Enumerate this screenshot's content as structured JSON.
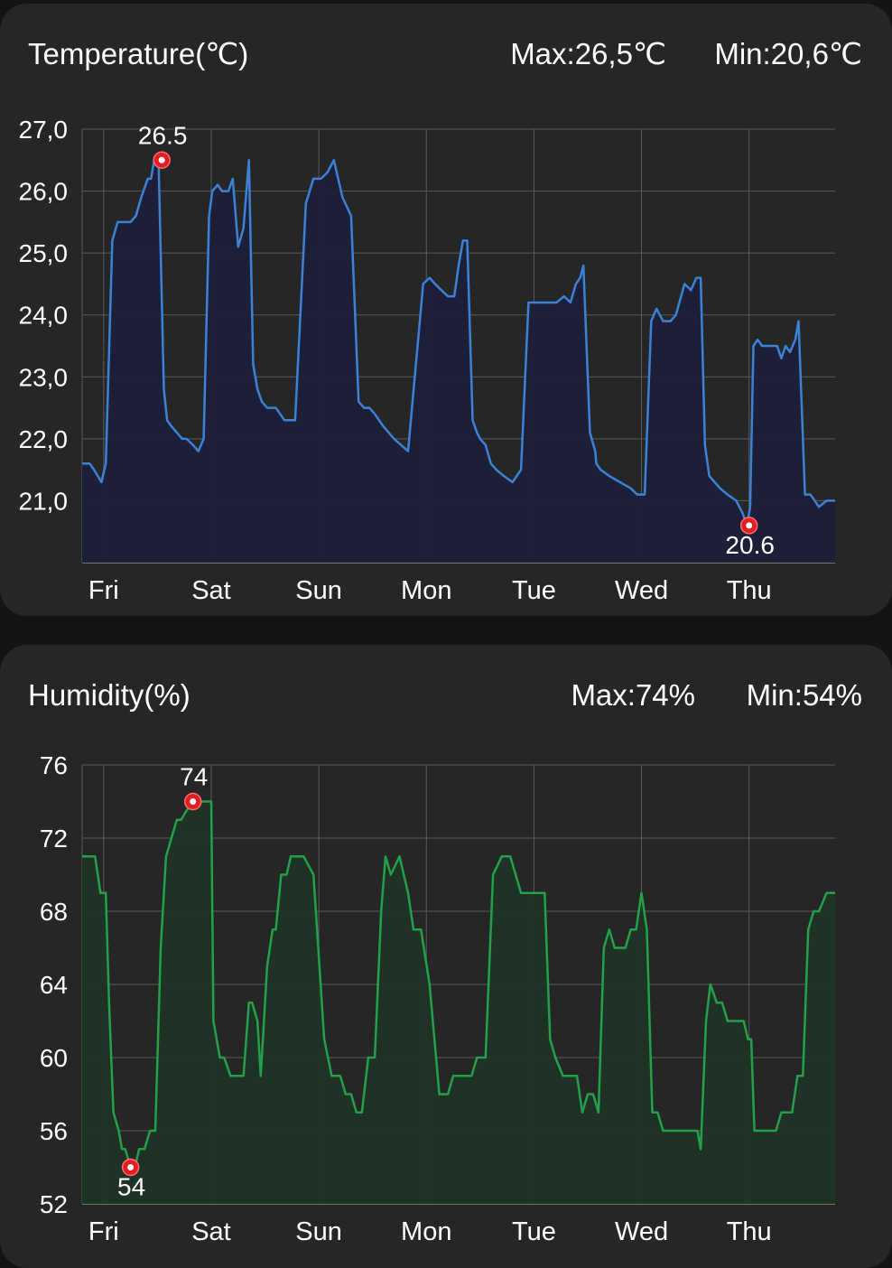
{
  "colors": {
    "temperature_line": "#3b82d6",
    "temperature_fill": "#1c1f3a",
    "humidity_line": "#22a04a",
    "humidity_fill": "#1e3426",
    "grid": "#5a5a5a",
    "marker": "#e11d24"
  },
  "temperature": {
    "title": "Temperature(℃)",
    "max_label": "Max:26,5℃",
    "min_label": "Min:20,6℃"
  },
  "humidity": {
    "title": "Humidity(%)",
    "max_label": "Max:74%",
    "min_label": "Min:54%"
  },
  "chart_data": [
    {
      "type": "area",
      "ylim": [
        20.0,
        27.0
      ],
      "yticks": [
        21.0,
        22.0,
        23.0,
        24.0,
        25.0,
        26.0,
        27.0
      ],
      "ytick_labels": [
        "21,0",
        "22,0",
        "23,0",
        "24,0",
        "25,0",
        "26,0",
        "27,0"
      ],
      "xlim": [
        -0.2,
        6.8
      ],
      "xticks": [
        0,
        1,
        2,
        3,
        4,
        5,
        6
      ],
      "xtick_labels": [
        "Fri",
        "Sat",
        "Sun",
        "Mon",
        "Tue",
        "Wed",
        "Thu"
      ],
      "grid": true,
      "series": [
        {
          "x": [
            -0.2,
            -0.13,
            -0.09,
            -0.02,
            0.02,
            0.08,
            0.13,
            0.2,
            0.25,
            0.3,
            0.35,
            0.41,
            0.44,
            0.47,
            0.51,
            0.56,
            0.59,
            0.63,
            0.68,
            0.73,
            0.77,
            0.83,
            0.88,
            0.93,
            0.98,
            1.01,
            1.06,
            1.1,
            1.16,
            1.2,
            1.25,
            1.3,
            1.35,
            1.39,
            1.43,
            1.47,
            1.52,
            1.6,
            1.68,
            1.78,
            1.88,
            1.95,
            2.02,
            2.08,
            2.14,
            2.22,
            2.3,
            2.37,
            2.42,
            2.47,
            2.52,
            2.6,
            2.7,
            2.83,
            2.97,
            3.03,
            3.08,
            3.14,
            3.2,
            3.26,
            3.3,
            3.34,
            3.38,
            3.43,
            3.47,
            3.5,
            3.55,
            3.6,
            3.65,
            3.72,
            3.8,
            3.88,
            3.95,
            4.02,
            4.08,
            4.14,
            4.21,
            4.28,
            4.34,
            4.39,
            4.43,
            4.46,
            4.52,
            4.57,
            4.58,
            4.62,
            4.7,
            4.8,
            4.9,
            4.96,
            5.03,
            5.09,
            5.14,
            5.2,
            5.27,
            5.32,
            5.4,
            5.46,
            5.51,
            5.55,
            5.59,
            5.63,
            5.68,
            5.73,
            5.8,
            5.88,
            5.94,
            5.98,
            6.01,
            6.04,
            6.08,
            6.12,
            6.18,
            6.26,
            6.3,
            6.34,
            6.38,
            6.43,
            6.46,
            6.52,
            6.57,
            6.65,
            6.72,
            6.78,
            6.8
          ],
          "y": [
            21.6,
            21.6,
            21.5,
            21.3,
            21.6,
            25.2,
            25.5,
            25.5,
            25.5,
            25.6,
            25.9,
            26.2,
            26.2,
            26.5,
            26.5,
            22.8,
            22.3,
            22.2,
            22.1,
            22.0,
            22.0,
            21.9,
            21.8,
            22.0,
            25.6,
            26.0,
            26.1,
            26.0,
            26.0,
            26.2,
            25.1,
            25.4,
            26.5,
            23.2,
            22.8,
            22.6,
            22.5,
            22.5,
            22.3,
            22.3,
            25.8,
            26.2,
            26.2,
            26.3,
            26.5,
            25.9,
            25.6,
            22.6,
            22.5,
            22.5,
            22.4,
            22.2,
            22.0,
            21.8,
            24.5,
            24.6,
            24.5,
            24.4,
            24.3,
            24.3,
            24.8,
            25.2,
            25.2,
            22.3,
            22.1,
            22.0,
            21.9,
            21.6,
            21.5,
            21.4,
            21.3,
            21.5,
            24.2,
            24.2,
            24.2,
            24.2,
            24.2,
            24.3,
            24.2,
            24.5,
            24.6,
            24.8,
            22.1,
            21.8,
            21.6,
            21.5,
            21.4,
            21.3,
            21.2,
            21.1,
            21.1,
            23.9,
            24.1,
            23.9,
            23.9,
            24.0,
            24.5,
            24.4,
            24.6,
            24.6,
            21.9,
            21.4,
            21.3,
            21.2,
            21.1,
            21.0,
            20.8,
            20.6,
            20.9,
            23.5,
            23.6,
            23.5,
            23.5,
            23.5,
            23.3,
            23.5,
            23.4,
            23.6,
            23.9,
            21.1,
            21.1,
            20.9,
            21.0,
            21.0,
            21.0
          ]
        }
      ],
      "annotations": [
        {
          "x": 0.54,
          "y": 26.5,
          "text": "26.5",
          "position": "above"
        },
        {
          "x": 6.0,
          "y": 20.6,
          "text": "20.6",
          "position": "below"
        }
      ]
    },
    {
      "type": "area",
      "ylim": [
        52,
        76
      ],
      "yticks": [
        52,
        56,
        60,
        64,
        68,
        72,
        76
      ],
      "ytick_labels": [
        "52",
        "56",
        "60",
        "64",
        "68",
        "72",
        "76"
      ],
      "xlim": [
        -0.2,
        6.8
      ],
      "xticks": [
        0,
        1,
        2,
        3,
        4,
        5,
        6
      ],
      "xtick_labels": [
        "Fri",
        "Sat",
        "Sun",
        "Mon",
        "Tue",
        "Wed",
        "Thu"
      ],
      "grid": true,
      "series": [
        {
          "x": [
            -0.2,
            -0.08,
            -0.03,
            0.02,
            0.05,
            0.09,
            0.14,
            0.17,
            0.2,
            0.25,
            0.29,
            0.33,
            0.38,
            0.43,
            0.48,
            0.53,
            0.58,
            0.63,
            0.68,
            0.72,
            0.77,
            0.83,
            0.88,
            0.9,
            0.93,
            0.96,
            1.0,
            1.02,
            1.08,
            1.12,
            1.18,
            1.3,
            1.35,
            1.38,
            1.43,
            1.46,
            1.52,
            1.57,
            1.6,
            1.65,
            1.7,
            1.74,
            1.8,
            1.86,
            1.95,
            2.05,
            2.12,
            2.2,
            2.25,
            2.3,
            2.35,
            2.4,
            2.46,
            2.52,
            2.58,
            2.62,
            2.67,
            2.75,
            2.83,
            2.88,
            2.95,
            3.03,
            3.12,
            3.2,
            3.25,
            3.33,
            3.42,
            3.47,
            3.55,
            3.62,
            3.7,
            3.78,
            3.88,
            3.95,
            4.06,
            4.1,
            4.15,
            4.2,
            4.27,
            4.35,
            4.4,
            4.45,
            4.5,
            4.55,
            4.6,
            4.65,
            4.7,
            4.75,
            4.8,
            4.85,
            4.9,
            4.95,
            5.0,
            5.05,
            5.1,
            5.15,
            5.2,
            5.3,
            5.45,
            5.52,
            5.55,
            5.6,
            5.64,
            5.7,
            5.75,
            5.8,
            5.85,
            5.95,
            5.99,
            6.02,
            6.05,
            6.08,
            6.2,
            6.25,
            6.3,
            6.4,
            6.45,
            6.5,
            6.55,
            6.6,
            6.65,
            6.72,
            6.8
          ],
          "y": [
            71,
            71,
            69,
            69,
            63,
            57,
            56,
            55,
            55,
            54,
            54,
            55,
            55,
            56,
            56,
            66,
            71,
            72,
            73,
            73,
            73.5,
            74,
            74,
            74,
            74,
            74,
            74,
            62,
            60,
            60,
            59,
            59,
            63,
            63,
            62,
            59,
            65,
            67,
            67,
            70,
            70,
            71,
            71,
            71,
            70,
            61,
            59,
            59,
            58,
            58,
            57,
            57,
            60,
            60,
            68,
            71,
            70,
            71,
            69,
            67,
            67,
            64,
            58,
            58,
            59,
            59,
            59,
            60,
            60,
            70,
            71,
            71,
            69,
            69,
            69,
            69,
            61,
            60,
            59,
            59,
            59,
            57,
            58,
            58,
            57,
            66,
            67,
            66,
            66,
            66,
            67,
            67,
            69,
            67,
            57,
            57,
            56,
            56,
            56,
            56,
            55,
            62,
            64,
            63,
            63,
            62,
            62,
            62,
            61,
            61,
            56,
            56,
            56,
            56,
            57,
            57,
            59,
            59,
            67,
            68,
            68,
            69,
            69
          ]
        }
      ],
      "annotations": [
        {
          "x": 0.25,
          "y": 54,
          "text": "54",
          "position": "below"
        },
        {
          "x": 0.83,
          "y": 74,
          "text": "74",
          "position": "above"
        }
      ]
    }
  ]
}
